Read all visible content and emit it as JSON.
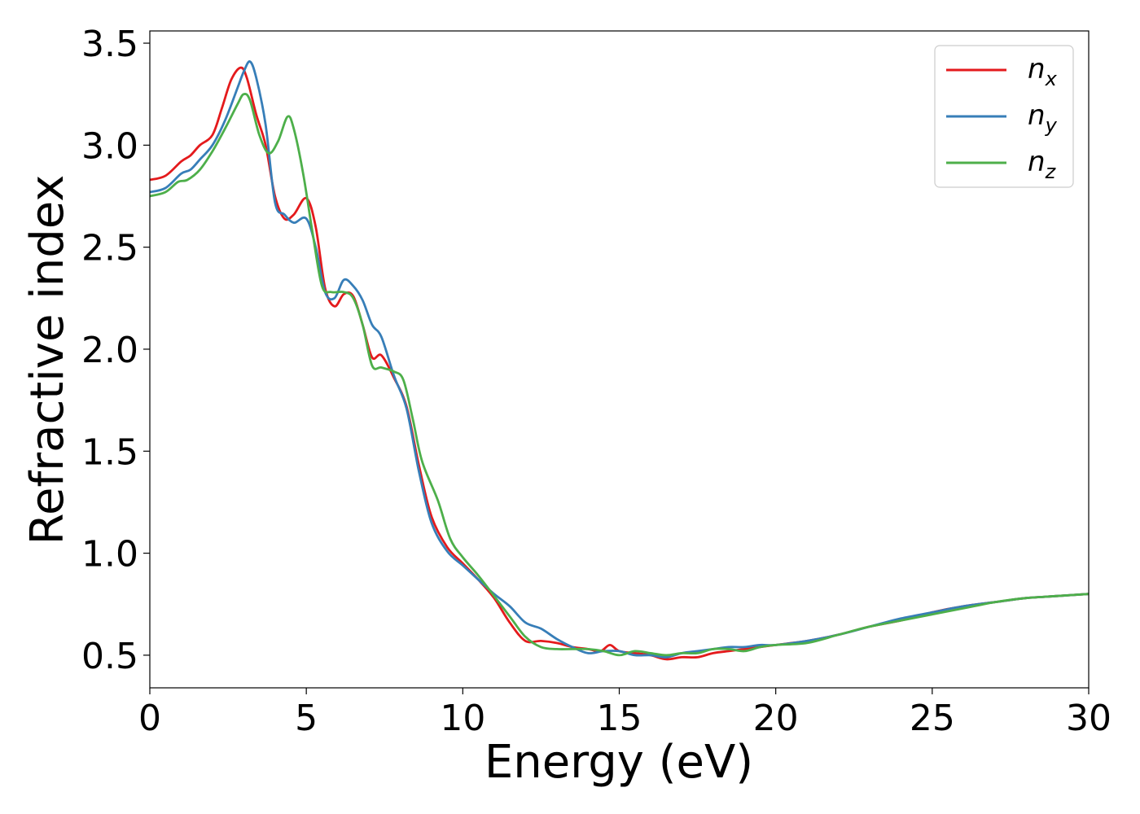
{
  "chart_data": {
    "type": "line",
    "title": "",
    "xlabel": "Energy (eV)",
    "ylabel": "Refractive index",
    "xlim": [
      0,
      30
    ],
    "ylim": [
      0.34,
      3.56
    ],
    "x_ticks": [
      0,
      5,
      10,
      15,
      20,
      25,
      30
    ],
    "x_tick_labels": [
      "0",
      "5",
      "10",
      "15",
      "20",
      "25",
      "30"
    ],
    "y_ticks": [
      0.5,
      1.0,
      1.5,
      2.0,
      2.5,
      3.0,
      3.5
    ],
    "y_tick_labels": [
      "0.5",
      "1.0",
      "1.5",
      "2.0",
      "2.5",
      "3.0",
      "3.5"
    ],
    "grid": false,
    "legend_position": "top-right",
    "series": [
      {
        "name": "n_x",
        "legend_main": "n",
        "legend_sub": "x",
        "color": "#e41a1c",
        "points": [
          [
            0,
            2.83
          ],
          [
            0.5,
            2.85
          ],
          [
            1,
            2.92
          ],
          [
            1.3,
            2.95
          ],
          [
            1.6,
            3.0
          ],
          [
            2,
            3.05
          ],
          [
            2.3,
            3.18
          ],
          [
            2.6,
            3.32
          ],
          [
            2.9,
            3.38
          ],
          [
            3.1,
            3.33
          ],
          [
            3.4,
            3.15
          ],
          [
            3.7,
            3.0
          ],
          [
            4,
            2.75
          ],
          [
            4.3,
            2.64
          ],
          [
            4.6,
            2.66
          ],
          [
            5,
            2.74
          ],
          [
            5.3,
            2.6
          ],
          [
            5.6,
            2.3
          ],
          [
            5.9,
            2.21
          ],
          [
            6.2,
            2.27
          ],
          [
            6.5,
            2.26
          ],
          [
            6.8,
            2.12
          ],
          [
            7.1,
            1.96
          ],
          [
            7.4,
            1.97
          ],
          [
            7.8,
            1.86
          ],
          [
            8.2,
            1.72
          ],
          [
            8.6,
            1.43
          ],
          [
            9,
            1.18
          ],
          [
            9.5,
            1.03
          ],
          [
            10,
            0.95
          ],
          [
            10.5,
            0.87
          ],
          [
            11,
            0.78
          ],
          [
            11.5,
            0.66
          ],
          [
            12,
            0.57
          ],
          [
            12.5,
            0.57
          ],
          [
            13,
            0.56
          ],
          [
            13.5,
            0.54
          ],
          [
            14,
            0.53
          ],
          [
            14.4,
            0.52
          ],
          [
            14.7,
            0.55
          ],
          [
            15,
            0.52
          ],
          [
            15.5,
            0.51
          ],
          [
            16,
            0.5
          ],
          [
            16.5,
            0.48
          ],
          [
            17,
            0.49
          ],
          [
            17.5,
            0.49
          ],
          [
            18,
            0.51
          ],
          [
            18.5,
            0.52
          ],
          [
            19,
            0.53
          ],
          [
            19.5,
            0.54
          ],
          [
            20,
            0.55
          ],
          [
            21,
            0.57
          ],
          [
            22,
            0.6
          ],
          [
            23,
            0.64
          ],
          [
            24,
            0.67
          ],
          [
            25,
            0.71
          ],
          [
            26,
            0.74
          ],
          [
            27,
            0.76
          ],
          [
            28,
            0.78
          ],
          [
            29,
            0.79
          ],
          [
            30,
            0.8
          ]
        ]
      },
      {
        "name": "n_y",
        "legend_main": "n",
        "legend_sub": "y",
        "color": "#377eb8",
        "points": [
          [
            0,
            2.77
          ],
          [
            0.5,
            2.79
          ],
          [
            1,
            2.86
          ],
          [
            1.3,
            2.88
          ],
          [
            1.6,
            2.93
          ],
          [
            2,
            3.0
          ],
          [
            2.4,
            3.12
          ],
          [
            2.8,
            3.28
          ],
          [
            3.0,
            3.36
          ],
          [
            3.2,
            3.41
          ],
          [
            3.4,
            3.33
          ],
          [
            3.7,
            3.1
          ],
          [
            4,
            2.72
          ],
          [
            4.3,
            2.66
          ],
          [
            4.6,
            2.62
          ],
          [
            5,
            2.64
          ],
          [
            5.3,
            2.5
          ],
          [
            5.6,
            2.28
          ],
          [
            5.9,
            2.25
          ],
          [
            6.2,
            2.34
          ],
          [
            6.5,
            2.31
          ],
          [
            6.8,
            2.24
          ],
          [
            7.1,
            2.12
          ],
          [
            7.4,
            2.06
          ],
          [
            7.8,
            1.87
          ],
          [
            8.2,
            1.71
          ],
          [
            8.6,
            1.4
          ],
          [
            9,
            1.15
          ],
          [
            9.5,
            1.01
          ],
          [
            10,
            0.94
          ],
          [
            10.5,
            0.87
          ],
          [
            11,
            0.8
          ],
          [
            11.5,
            0.74
          ],
          [
            12,
            0.66
          ],
          [
            12.5,
            0.63
          ],
          [
            13,
            0.58
          ],
          [
            13.5,
            0.54
          ],
          [
            14,
            0.51
          ],
          [
            14.5,
            0.52
          ],
          [
            15,
            0.52
          ],
          [
            15.5,
            0.5
          ],
          [
            16,
            0.5
          ],
          [
            16.5,
            0.49
          ],
          [
            17,
            0.51
          ],
          [
            17.5,
            0.52
          ],
          [
            18,
            0.53
          ],
          [
            18.5,
            0.54
          ],
          [
            19,
            0.54
          ],
          [
            19.5,
            0.55
          ],
          [
            20,
            0.55
          ],
          [
            21,
            0.57
          ],
          [
            22,
            0.6
          ],
          [
            23,
            0.64
          ],
          [
            24,
            0.68
          ],
          [
            25,
            0.71
          ],
          [
            26,
            0.74
          ],
          [
            27,
            0.76
          ],
          [
            28,
            0.78
          ],
          [
            29,
            0.79
          ],
          [
            30,
            0.8
          ]
        ]
      },
      {
        "name": "n_z",
        "legend_main": "n",
        "legend_sub": "z",
        "color": "#4daf4a",
        "points": [
          [
            0,
            2.75
          ],
          [
            0.5,
            2.77
          ],
          [
            0.9,
            2.82
          ],
          [
            1.2,
            2.83
          ],
          [
            1.6,
            2.88
          ],
          [
            2,
            2.97
          ],
          [
            2.4,
            3.08
          ],
          [
            2.8,
            3.2
          ],
          [
            3.0,
            3.25
          ],
          [
            3.2,
            3.22
          ],
          [
            3.5,
            3.05
          ],
          [
            3.8,
            2.96
          ],
          [
            4.1,
            3.02
          ],
          [
            4.4,
            3.14
          ],
          [
            4.6,
            3.08
          ],
          [
            4.9,
            2.86
          ],
          [
            5.2,
            2.57
          ],
          [
            5.5,
            2.31
          ],
          [
            5.8,
            2.28
          ],
          [
            6.2,
            2.28
          ],
          [
            6.5,
            2.25
          ],
          [
            6.8,
            2.12
          ],
          [
            7.1,
            1.92
          ],
          [
            7.4,
            1.91
          ],
          [
            7.8,
            1.89
          ],
          [
            8.1,
            1.85
          ],
          [
            8.4,
            1.66
          ],
          [
            8.7,
            1.45
          ],
          [
            9.2,
            1.26
          ],
          [
            9.6,
            1.07
          ],
          [
            10,
            0.98
          ],
          [
            10.5,
            0.89
          ],
          [
            11,
            0.79
          ],
          [
            11.5,
            0.69
          ],
          [
            12,
            0.59
          ],
          [
            12.5,
            0.54
          ],
          [
            13,
            0.53
          ],
          [
            13.5,
            0.53
          ],
          [
            14,
            0.53
          ],
          [
            14.5,
            0.52
          ],
          [
            15,
            0.5
          ],
          [
            15.5,
            0.52
          ],
          [
            16,
            0.51
          ],
          [
            16.5,
            0.5
          ],
          [
            17,
            0.51
          ],
          [
            17.5,
            0.51
          ],
          [
            18,
            0.53
          ],
          [
            18.5,
            0.53
          ],
          [
            19,
            0.52
          ],
          [
            19.5,
            0.54
          ],
          [
            20,
            0.55
          ],
          [
            21,
            0.56
          ],
          [
            22,
            0.6
          ],
          [
            23,
            0.64
          ],
          [
            24,
            0.67
          ],
          [
            25,
            0.7
          ],
          [
            26,
            0.73
          ],
          [
            27,
            0.76
          ],
          [
            28,
            0.78
          ],
          [
            29,
            0.79
          ],
          [
            30,
            0.8
          ]
        ]
      }
    ]
  }
}
